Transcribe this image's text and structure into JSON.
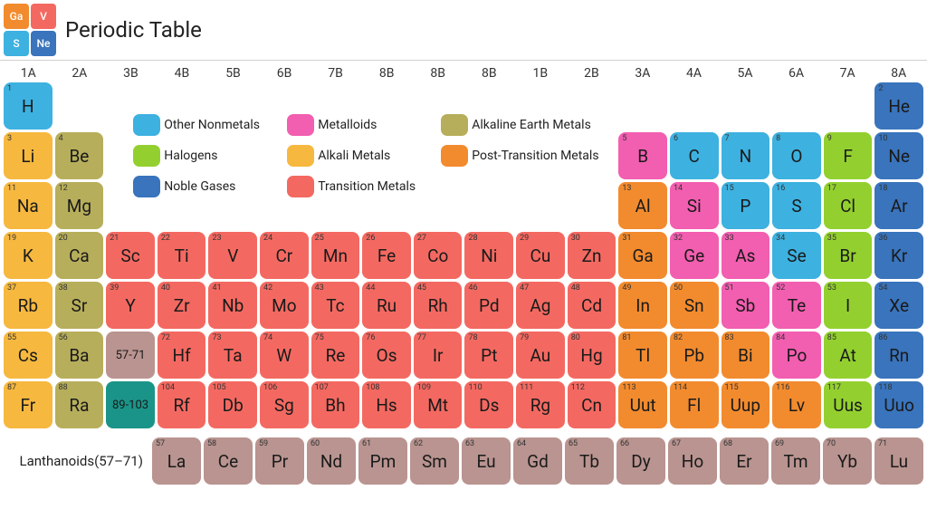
{
  "colors": {
    "other_nonmetals": "#3db1e0",
    "halogens": "#93d02f",
    "noble_gases": "#3974bc",
    "metalloids": "#f25eb0",
    "alkali_metals": "#f6b83f",
    "transition_metals": "#f36961",
    "alkaline_earth": "#b7ae5b",
    "post_transition": "#f28b2e",
    "lanthanoid": "#b99490",
    "actinoid": "#1a9488"
  },
  "app_title": "Periodic Table",
  "logo_cells": [
    {
      "sym": "Ga",
      "color": "#f28b2e"
    },
    {
      "sym": "V",
      "color": "#f36961"
    },
    {
      "sym": "S",
      "color": "#3db1e0"
    },
    {
      "sym": "Ne",
      "color": "#3974bc"
    }
  ],
  "groups": [
    "1A",
    "2A",
    "3B",
    "4B",
    "5B",
    "6B",
    "7B",
    "8B",
    "8B",
    "8B",
    "1B",
    "2B",
    "3A",
    "4A",
    "5A",
    "6A",
    "7A",
    "8A"
  ],
  "legend": [
    [
      {
        "label": "Other Nonmetals",
        "color": "#3db1e0"
      },
      {
        "label": "Metalloids",
        "color": "#f25eb0"
      },
      {
        "label": "Alkaline Earth Metals",
        "color": "#b7ae5b"
      }
    ],
    [
      {
        "label": "Halogens",
        "color": "#93d02f"
      },
      {
        "label": "Alkali Metals",
        "color": "#f6b83f"
      },
      {
        "label": "Post-Transition Metals",
        "color": "#f28b2e"
      }
    ],
    [
      {
        "label": "Noble Gases",
        "color": "#3974bc"
      },
      {
        "label": "Transition Metals",
        "color": "#f36961"
      }
    ]
  ],
  "elements": [
    {
      "n": 1,
      "s": "H",
      "c": 1,
      "r": 1,
      "cat": "other_nonmetals"
    },
    {
      "n": 2,
      "s": "He",
      "c": 18,
      "r": 1,
      "cat": "noble_gases"
    },
    {
      "n": 3,
      "s": "Li",
      "c": 1,
      "r": 2,
      "cat": "alkali_metals"
    },
    {
      "n": 4,
      "s": "Be",
      "c": 2,
      "r": 2,
      "cat": "alkaline_earth"
    },
    {
      "n": 5,
      "s": "B",
      "c": 13,
      "r": 2,
      "cat": "metalloids"
    },
    {
      "n": 6,
      "s": "C",
      "c": 14,
      "r": 2,
      "cat": "other_nonmetals"
    },
    {
      "n": 7,
      "s": "N",
      "c": 15,
      "r": 2,
      "cat": "other_nonmetals"
    },
    {
      "n": 8,
      "s": "O",
      "c": 16,
      "r": 2,
      "cat": "other_nonmetals"
    },
    {
      "n": 9,
      "s": "F",
      "c": 17,
      "r": 2,
      "cat": "halogens"
    },
    {
      "n": 10,
      "s": "Ne",
      "c": 18,
      "r": 2,
      "cat": "noble_gases"
    },
    {
      "n": 11,
      "s": "Na",
      "c": 1,
      "r": 3,
      "cat": "alkali_metals"
    },
    {
      "n": 12,
      "s": "Mg",
      "c": 2,
      "r": 3,
      "cat": "alkaline_earth"
    },
    {
      "n": 13,
      "s": "Al",
      "c": 13,
      "r": 3,
      "cat": "post_transition"
    },
    {
      "n": 14,
      "s": "Si",
      "c": 14,
      "r": 3,
      "cat": "metalloids"
    },
    {
      "n": 15,
      "s": "P",
      "c": 15,
      "r": 3,
      "cat": "other_nonmetals"
    },
    {
      "n": 16,
      "s": "S",
      "c": 16,
      "r": 3,
      "cat": "other_nonmetals"
    },
    {
      "n": 17,
      "s": "Cl",
      "c": 17,
      "r": 3,
      "cat": "halogens"
    },
    {
      "n": 18,
      "s": "Ar",
      "c": 18,
      "r": 3,
      "cat": "noble_gases"
    },
    {
      "n": 19,
      "s": "K",
      "c": 1,
      "r": 4,
      "cat": "alkali_metals"
    },
    {
      "n": 20,
      "s": "Ca",
      "c": 2,
      "r": 4,
      "cat": "alkaline_earth"
    },
    {
      "n": 21,
      "s": "Sc",
      "c": 3,
      "r": 4,
      "cat": "transition_metals"
    },
    {
      "n": 22,
      "s": "Ti",
      "c": 4,
      "r": 4,
      "cat": "transition_metals"
    },
    {
      "n": 23,
      "s": "V",
      "c": 5,
      "r": 4,
      "cat": "transition_metals"
    },
    {
      "n": 24,
      "s": "Cr",
      "c": 6,
      "r": 4,
      "cat": "transition_metals"
    },
    {
      "n": 25,
      "s": "Mn",
      "c": 7,
      "r": 4,
      "cat": "transition_metals"
    },
    {
      "n": 26,
      "s": "Fe",
      "c": 8,
      "r": 4,
      "cat": "transition_metals"
    },
    {
      "n": 27,
      "s": "Co",
      "c": 9,
      "r": 4,
      "cat": "transition_metals"
    },
    {
      "n": 28,
      "s": "Ni",
      "c": 10,
      "r": 4,
      "cat": "transition_metals"
    },
    {
      "n": 29,
      "s": "Cu",
      "c": 11,
      "r": 4,
      "cat": "transition_metals"
    },
    {
      "n": 30,
      "s": "Zn",
      "c": 12,
      "r": 4,
      "cat": "transition_metals"
    },
    {
      "n": 31,
      "s": "Ga",
      "c": 13,
      "r": 4,
      "cat": "post_transition"
    },
    {
      "n": 32,
      "s": "Ge",
      "c": 14,
      "r": 4,
      "cat": "metalloids"
    },
    {
      "n": 33,
      "s": "As",
      "c": 15,
      "r": 4,
      "cat": "metalloids"
    },
    {
      "n": 34,
      "s": "Se",
      "c": 16,
      "r": 4,
      "cat": "other_nonmetals"
    },
    {
      "n": 35,
      "s": "Br",
      "c": 17,
      "r": 4,
      "cat": "halogens"
    },
    {
      "n": 36,
      "s": "Kr",
      "c": 18,
      "r": 4,
      "cat": "noble_gases"
    },
    {
      "n": 37,
      "s": "Rb",
      "c": 1,
      "r": 5,
      "cat": "alkali_metals"
    },
    {
      "n": 38,
      "s": "Sr",
      "c": 2,
      "r": 5,
      "cat": "alkaline_earth"
    },
    {
      "n": 39,
      "s": "Y",
      "c": 3,
      "r": 5,
      "cat": "transition_metals"
    },
    {
      "n": 40,
      "s": "Zr",
      "c": 4,
      "r": 5,
      "cat": "transition_metals"
    },
    {
      "n": 41,
      "s": "Nb",
      "c": 5,
      "r": 5,
      "cat": "transition_metals"
    },
    {
      "n": 42,
      "s": "Mo",
      "c": 6,
      "r": 5,
      "cat": "transition_metals"
    },
    {
      "n": 43,
      "s": "Tc",
      "c": 7,
      "r": 5,
      "cat": "transition_metals"
    },
    {
      "n": 44,
      "s": "Ru",
      "c": 8,
      "r": 5,
      "cat": "transition_metals"
    },
    {
      "n": 45,
      "s": "Rh",
      "c": 9,
      "r": 5,
      "cat": "transition_metals"
    },
    {
      "n": 46,
      "s": "Pd",
      "c": 10,
      "r": 5,
      "cat": "transition_metals"
    },
    {
      "n": 47,
      "s": "Ag",
      "c": 11,
      "r": 5,
      "cat": "transition_metals"
    },
    {
      "n": 48,
      "s": "Cd",
      "c": 12,
      "r": 5,
      "cat": "transition_metals"
    },
    {
      "n": 49,
      "s": "In",
      "c": 13,
      "r": 5,
      "cat": "post_transition"
    },
    {
      "n": 50,
      "s": "Sn",
      "c": 14,
      "r": 5,
      "cat": "post_transition"
    },
    {
      "n": 51,
      "s": "Sb",
      "c": 15,
      "r": 5,
      "cat": "metalloids"
    },
    {
      "n": 52,
      "s": "Te",
      "c": 16,
      "r": 5,
      "cat": "metalloids"
    },
    {
      "n": 53,
      "s": "I",
      "c": 17,
      "r": 5,
      "cat": "halogens"
    },
    {
      "n": 54,
      "s": "Xe",
      "c": 18,
      "r": 5,
      "cat": "noble_gases"
    },
    {
      "n": 55,
      "s": "Cs",
      "c": 1,
      "r": 6,
      "cat": "alkali_metals"
    },
    {
      "n": 56,
      "s": "Ba",
      "c": 2,
      "r": 6,
      "cat": "alkaline_earth"
    },
    {
      "n": null,
      "s": "57-71",
      "c": 3,
      "r": 6,
      "cat": "lanthanoid",
      "range": true
    },
    {
      "n": 72,
      "s": "Hf",
      "c": 4,
      "r": 6,
      "cat": "transition_metals"
    },
    {
      "n": 73,
      "s": "Ta",
      "c": 5,
      "r": 6,
      "cat": "transition_metals"
    },
    {
      "n": 74,
      "s": "W",
      "c": 6,
      "r": 6,
      "cat": "transition_metals"
    },
    {
      "n": 75,
      "s": "Re",
      "c": 7,
      "r": 6,
      "cat": "transition_metals"
    },
    {
      "n": 76,
      "s": "Os",
      "c": 8,
      "r": 6,
      "cat": "transition_metals"
    },
    {
      "n": 77,
      "s": "Ir",
      "c": 9,
      "r": 6,
      "cat": "transition_metals"
    },
    {
      "n": 78,
      "s": "Pt",
      "c": 10,
      "r": 6,
      "cat": "transition_metals"
    },
    {
      "n": 79,
      "s": "Au",
      "c": 11,
      "r": 6,
      "cat": "transition_metals"
    },
    {
      "n": 80,
      "s": "Hg",
      "c": 12,
      "r": 6,
      "cat": "transition_metals"
    },
    {
      "n": 81,
      "s": "Tl",
      "c": 13,
      "r": 6,
      "cat": "post_transition"
    },
    {
      "n": 82,
      "s": "Pb",
      "c": 14,
      "r": 6,
      "cat": "post_transition"
    },
    {
      "n": 83,
      "s": "Bi",
      "c": 15,
      "r": 6,
      "cat": "post_transition"
    },
    {
      "n": 84,
      "s": "Po",
      "c": 16,
      "r": 6,
      "cat": "metalloids"
    },
    {
      "n": 85,
      "s": "At",
      "c": 17,
      "r": 6,
      "cat": "halogens"
    },
    {
      "n": 86,
      "s": "Rn",
      "c": 18,
      "r": 6,
      "cat": "noble_gases"
    },
    {
      "n": 87,
      "s": "Fr",
      "c": 1,
      "r": 7,
      "cat": "alkali_metals"
    },
    {
      "n": 88,
      "s": "Ra",
      "c": 2,
      "r": 7,
      "cat": "alkaline_earth"
    },
    {
      "n": null,
      "s": "89-103",
      "c": 3,
      "r": 7,
      "cat": "actinoid",
      "range": true
    },
    {
      "n": 104,
      "s": "Rf",
      "c": 4,
      "r": 7,
      "cat": "transition_metals"
    },
    {
      "n": 105,
      "s": "Db",
      "c": 5,
      "r": 7,
      "cat": "transition_metals"
    },
    {
      "n": 106,
      "s": "Sg",
      "c": 6,
      "r": 7,
      "cat": "transition_metals"
    },
    {
      "n": 107,
      "s": "Bh",
      "c": 7,
      "r": 7,
      "cat": "transition_metals"
    },
    {
      "n": 108,
      "s": "Hs",
      "c": 8,
      "r": 7,
      "cat": "transition_metals"
    },
    {
      "n": 109,
      "s": "Mt",
      "c": 9,
      "r": 7,
      "cat": "transition_metals"
    },
    {
      "n": 110,
      "s": "Ds",
      "c": 10,
      "r": 7,
      "cat": "transition_metals"
    },
    {
      "n": 111,
      "s": "Rg",
      "c": 11,
      "r": 7,
      "cat": "transition_metals"
    },
    {
      "n": 112,
      "s": "Cn",
      "c": 12,
      "r": 7,
      "cat": "transition_metals"
    },
    {
      "n": 113,
      "s": "Uut",
      "c": 13,
      "r": 7,
      "cat": "post_transition"
    },
    {
      "n": 114,
      "s": "Fl",
      "c": 14,
      "r": 7,
      "cat": "post_transition"
    },
    {
      "n": 115,
      "s": "Uup",
      "c": 15,
      "r": 7,
      "cat": "post_transition"
    },
    {
      "n": 116,
      "s": "Lv",
      "c": 16,
      "r": 7,
      "cat": "post_transition"
    },
    {
      "n": 117,
      "s": "Uus",
      "c": 17,
      "r": 7,
      "cat": "halogens"
    },
    {
      "n": 118,
      "s": "Uuo",
      "c": 18,
      "r": 7,
      "cat": "noble_gases"
    }
  ],
  "lanthanoid_label": "Lanthanoids(57–71)",
  "lanthanoids": [
    {
      "n": 57,
      "s": "La"
    },
    {
      "n": 58,
      "s": "Ce"
    },
    {
      "n": 59,
      "s": "Pr"
    },
    {
      "n": 60,
      "s": "Nd"
    },
    {
      "n": 61,
      "s": "Pm"
    },
    {
      "n": 62,
      "s": "Sm"
    },
    {
      "n": 63,
      "s": "Eu"
    },
    {
      "n": 64,
      "s": "Gd"
    },
    {
      "n": 65,
      "s": "Tb"
    },
    {
      "n": 66,
      "s": "Dy"
    },
    {
      "n": 67,
      "s": "Ho"
    },
    {
      "n": 68,
      "s": "Er"
    },
    {
      "n": 69,
      "s": "Tm"
    },
    {
      "n": 70,
      "s": "Yb"
    },
    {
      "n": 71,
      "s": "Lu"
    }
  ]
}
